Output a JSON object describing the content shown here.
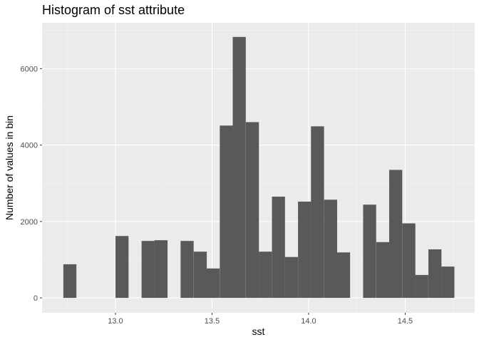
{
  "chart_data": {
    "type": "histogram",
    "title": "Histogram of sst attribute",
    "xlabel": "sst",
    "ylabel": "Number of values in bin",
    "xlim": [
      12.62,
      14.86
    ],
    "ylim": [
      -390,
      7200
    ],
    "x_ticks": [
      13.0,
      13.5,
      14.0,
      14.5
    ],
    "x_tick_labels": [
      "13.0",
      "13.5",
      "14.0",
      "14.5"
    ],
    "y_ticks": [
      0,
      2000,
      4000,
      6000
    ],
    "y_tick_labels": [
      "0",
      "2000",
      "4000",
      "6000"
    ],
    "bin_width": 0.0675,
    "bins": [
      {
        "x": 12.764,
        "count": 880
      },
      {
        "x": 12.831,
        "count": 0
      },
      {
        "x": 12.899,
        "count": 0
      },
      {
        "x": 12.966,
        "count": 0
      },
      {
        "x": 13.034,
        "count": 1620
      },
      {
        "x": 13.101,
        "count": 0
      },
      {
        "x": 13.169,
        "count": 1490
      },
      {
        "x": 13.236,
        "count": 1510
      },
      {
        "x": 13.304,
        "count": 0
      },
      {
        "x": 13.371,
        "count": 1490
      },
      {
        "x": 13.439,
        "count": 1210
      },
      {
        "x": 13.506,
        "count": 770
      },
      {
        "x": 13.574,
        "count": 4510
      },
      {
        "x": 13.641,
        "count": 6830
      },
      {
        "x": 13.709,
        "count": 4600
      },
      {
        "x": 13.776,
        "count": 1210
      },
      {
        "x": 13.844,
        "count": 2650
      },
      {
        "x": 13.911,
        "count": 1070
      },
      {
        "x": 13.979,
        "count": 2520
      },
      {
        "x": 14.046,
        "count": 4490
      },
      {
        "x": 14.114,
        "count": 2570
      },
      {
        "x": 14.181,
        "count": 1190
      },
      {
        "x": 14.249,
        "count": 0
      },
      {
        "x": 14.316,
        "count": 2440
      },
      {
        "x": 14.384,
        "count": 1460
      },
      {
        "x": 14.451,
        "count": 3350
      },
      {
        "x": 14.519,
        "count": 1950
      },
      {
        "x": 14.586,
        "count": 600
      },
      {
        "x": 14.654,
        "count": 1270
      },
      {
        "x": 14.721,
        "count": 820
      }
    ],
    "grid": true,
    "colors": {
      "bar": "#595959",
      "panel": "#ebebeb",
      "grid_major": "#ffffff",
      "grid_minor": "#f5f5f5",
      "tick": "#333333"
    }
  }
}
